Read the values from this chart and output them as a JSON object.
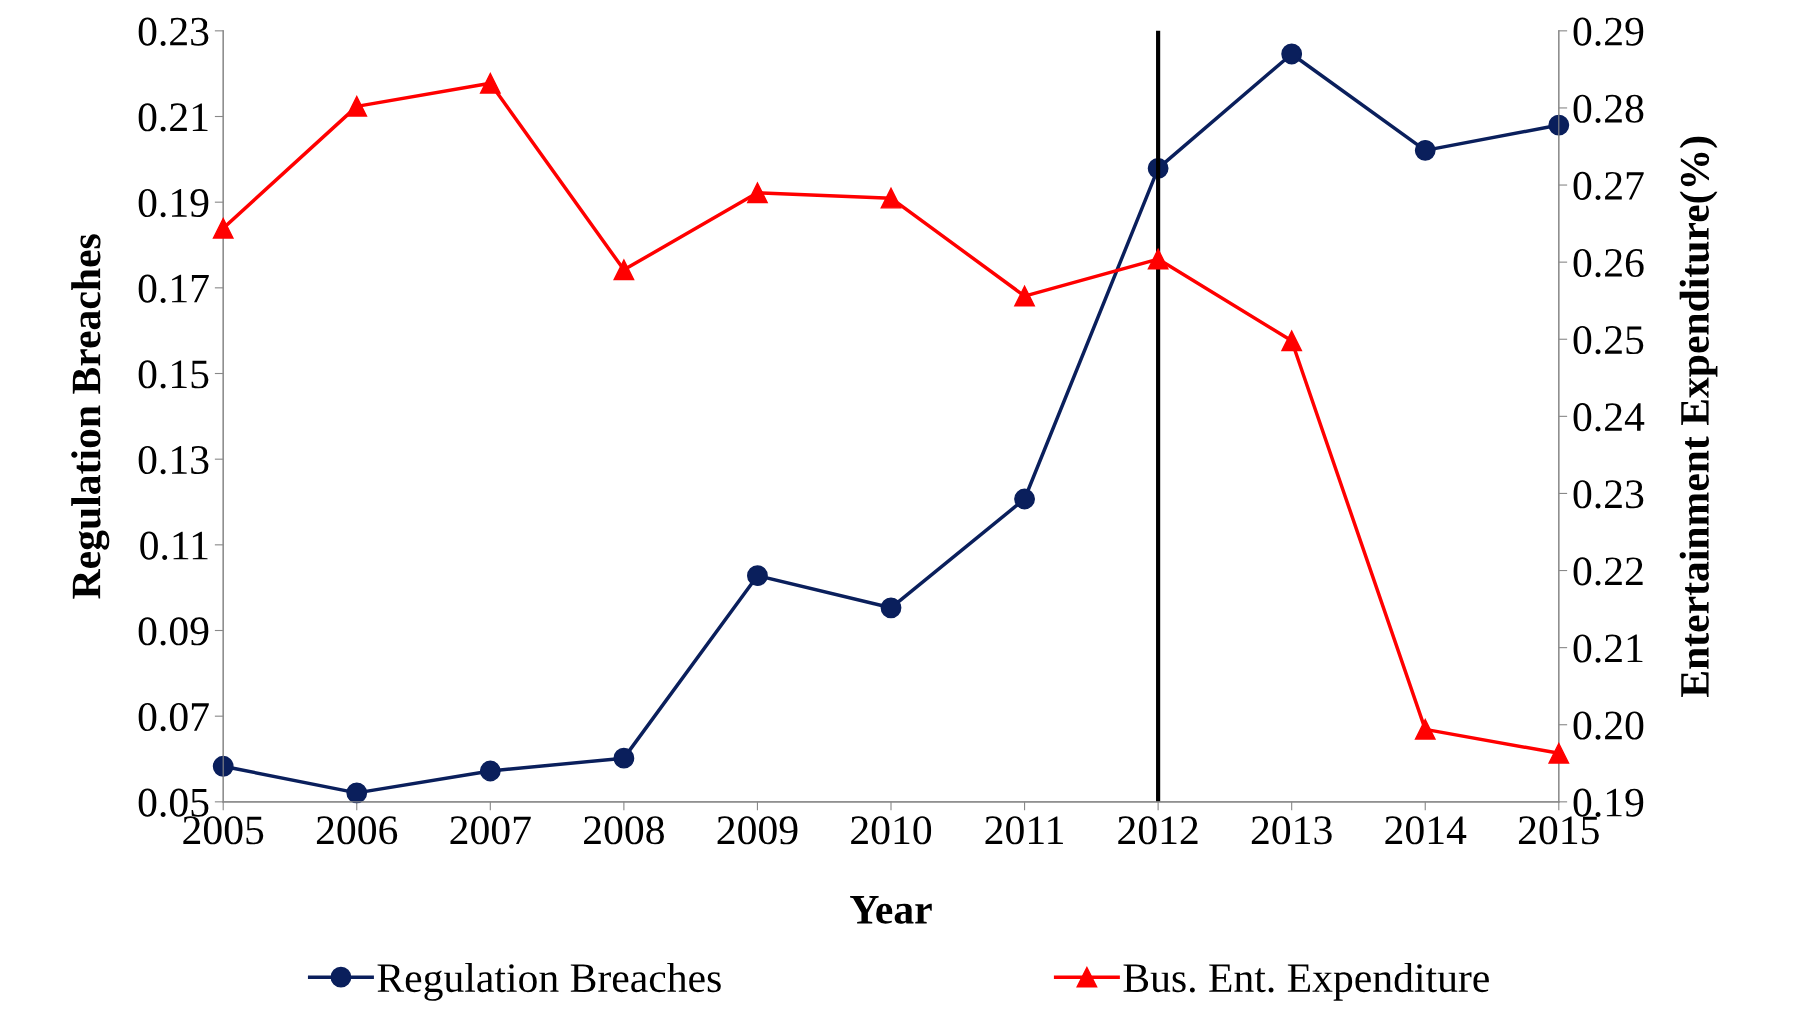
{
  "chart_data": {
    "type": "line",
    "xlabel": "Year",
    "ylabel": "Regulation Breaches",
    "y2label": "Entertainment Expenditure(%)",
    "x": [
      2005,
      2006,
      2007,
      2008,
      2009,
      2010,
      2011,
      2012,
      2013,
      2014,
      2015
    ],
    "xlim": [
      2005,
      2015
    ],
    "xticks": [
      2005,
      2006,
      2007,
      2008,
      2009,
      2010,
      2011,
      2012,
      2013,
      2014,
      2015
    ],
    "ylim": [
      0.05,
      0.23
    ],
    "yticks": [
      0.05,
      0.07,
      0.09,
      0.11,
      0.13,
      0.15,
      0.17,
      0.19,
      0.21,
      0.23
    ],
    "y2lim": [
      0.19,
      0.29
    ],
    "y2ticks": [
      0.19,
      {
        "value": 0.2,
        "label": "0.20"
      },
      0.21,
      0.22,
      0.23,
      0.24,
      0.25,
      0.26,
      0.27,
      0.28,
      0.29
    ],
    "series": [
      {
        "name": "Regulation Breaches",
        "color": "#0a1f5c",
        "marker": "circle",
        "values": [
          0.0583,
          0.0521,
          0.0572,
          0.0602,
          0.1028,
          0.0953,
          0.1207,
          0.1979,
          0.2246,
          0.2021,
          0.208
        ]
      },
      {
        "name": "Bus. Ent. Expenditure",
        "color": "#ff0000",
        "marker": "triangle",
        "axis": "y2",
        "values": [
          0.2644,
          0.2802,
          0.2832,
          0.259,
          0.269,
          0.2683,
          0.2556,
          0.2604,
          0.2498,
          0.1994,
          0.1963
        ]
      }
    ],
    "ref_lines": [
      {
        "axis": "x",
        "value": 2012,
        "color": "#000000"
      }
    ],
    "grid": false,
    "legend": "bottom"
  }
}
